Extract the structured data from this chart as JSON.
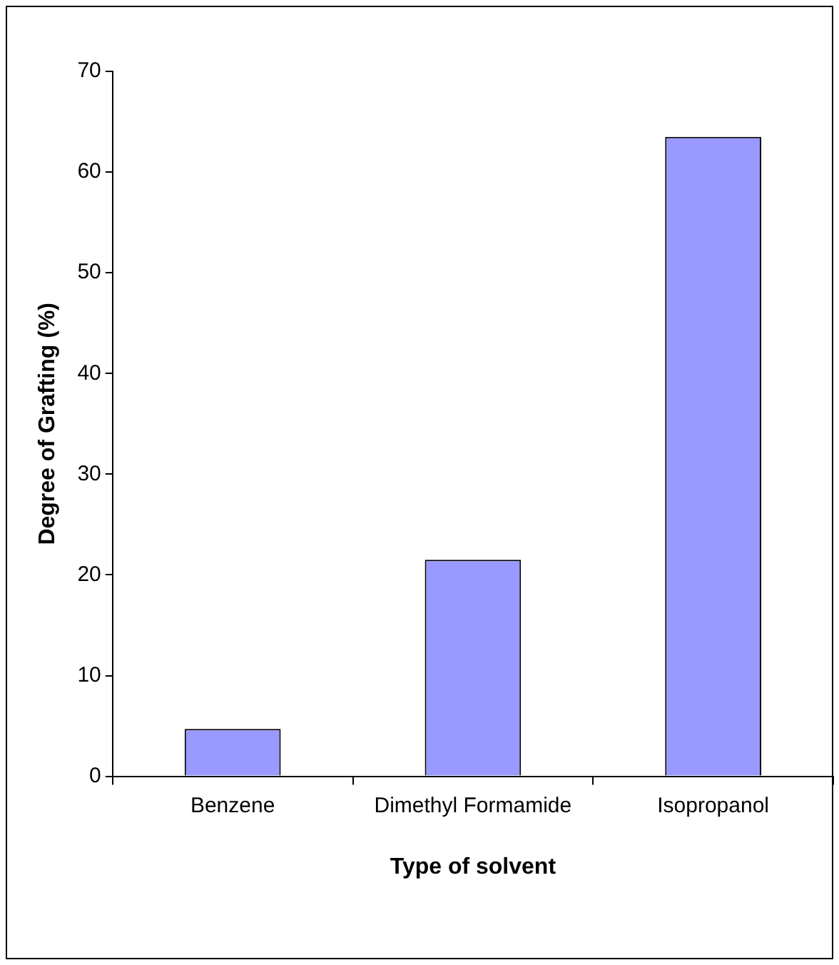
{
  "chart_data": {
    "type": "bar",
    "xlabel": "Type of solvent",
    "ylabel": "Degree of Grafting (%)",
    "categories": [
      "Benzene",
      "Dimethyl Formamide",
      "Isopropanol"
    ],
    "values": [
      4.7,
      21.5,
      63.5
    ],
    "color": "#9999ff",
    "ylim": [
      0,
      70
    ],
    "yticks": [
      0,
      10,
      20,
      30,
      40,
      50,
      60,
      70
    ],
    "grid": false,
    "legend": false
  }
}
